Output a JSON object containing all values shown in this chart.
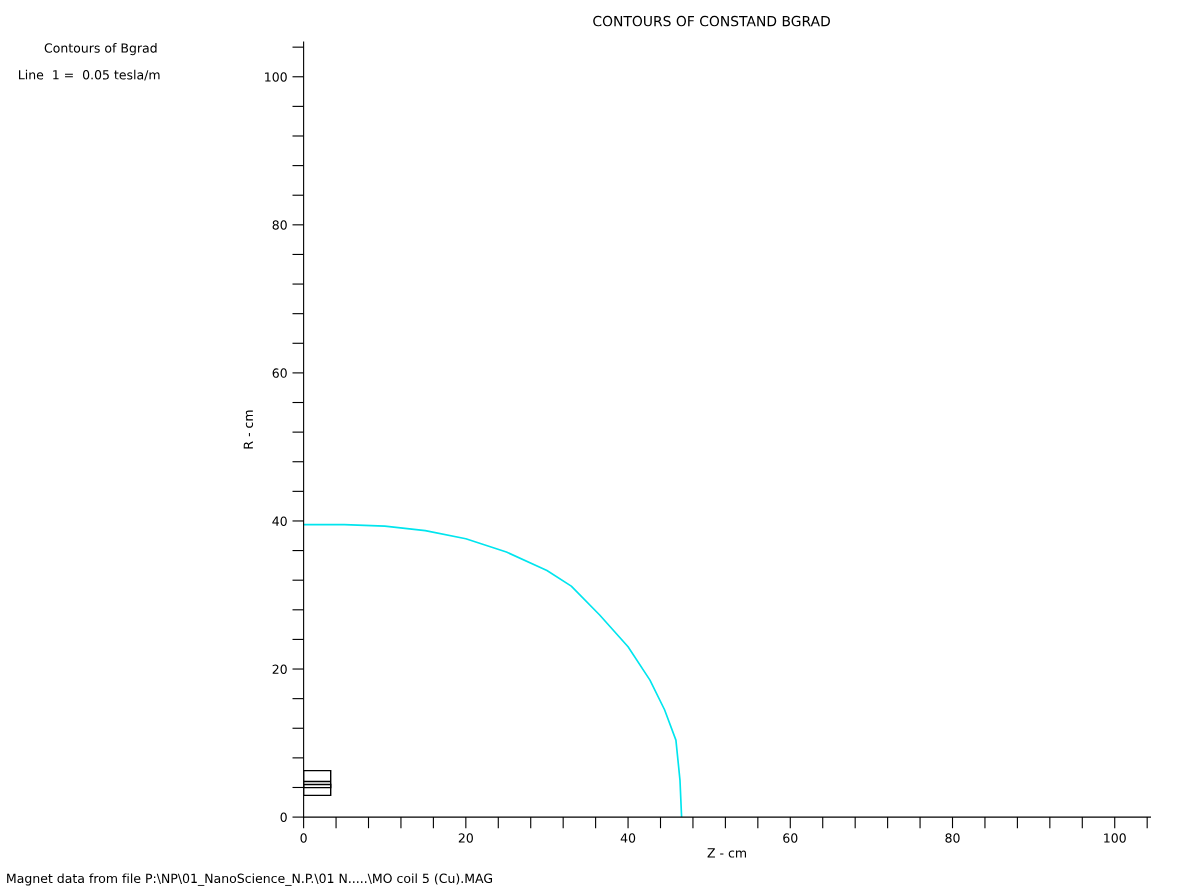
{
  "chart_data": {
    "type": "line",
    "title": "CONTOURS OF CONSTAND BGRAD",
    "xlabel": "Z - cm",
    "ylabel": "R - cm",
    "annotations": [
      "Contours of Bgrad",
      "Line  1 =  0.05 tesla/m",
      "Magnet data from file P:\\NP\\01_NanoScience_N.P.\\01 N.....\\MO coil 5 (Cu).MAG"
    ],
    "series": [
      {
        "color": "#00e5ee",
        "x": [
          0,
          5,
          10,
          15,
          20,
          25,
          30,
          33,
          36.5,
          40,
          42.7,
          44.5,
          45.9,
          46.4,
          46.6
        ],
        "values": [
          39.5,
          39.5,
          39.3,
          38.7,
          37.6,
          35.8,
          33.3,
          31.2,
          27.3,
          23,
          18.5,
          14.5,
          10.4,
          5,
          0
        ]
      }
    ],
    "xlim": [
      0,
      104.4
    ],
    "ylim": [
      0,
      104.7
    ],
    "xticks": [
      0,
      {
        "value": 4,
        "label": null
      },
      {
        "value": 8,
        "label": null
      },
      {
        "value": 12,
        "label": null
      },
      {
        "value": 16,
        "label": null
      },
      20,
      {
        "value": 24,
        "label": null
      },
      {
        "value": 28,
        "label": null
      },
      {
        "value": 32,
        "label": null
      },
      {
        "value": 36,
        "label": null
      },
      40,
      {
        "value": 44,
        "label": null
      },
      {
        "value": 48,
        "label": null
      },
      {
        "value": 52,
        "label": null
      },
      {
        "value": 56,
        "label": null
      },
      60,
      {
        "value": 64,
        "label": null
      },
      {
        "value": 68,
        "label": null
      },
      {
        "value": 72,
        "label": null
      },
      {
        "value": 76,
        "label": null
      },
      80,
      {
        "value": 84,
        "label": null
      },
      {
        "value": 88,
        "label": null
      },
      {
        "value": 92,
        "label": null
      },
      {
        "value": 96,
        "label": null
      },
      100,
      {
        "value": 104,
        "label": null
      }
    ],
    "yticks": [
      0,
      {
        "value": 4,
        "label": null
      },
      {
        "value": 8,
        "label": null
      },
      {
        "value": 12,
        "label": null
      },
      {
        "value": 16,
        "label": null
      },
      20,
      {
        "value": 24,
        "label": null
      },
      {
        "value": 28,
        "label": null
      },
      {
        "value": 32,
        "label": null
      },
      {
        "value": 36,
        "label": null
      },
      40,
      {
        "value": 44,
        "label": null
      },
      {
        "value": 48,
        "label": null
      },
      {
        "value": 52,
        "label": null
      },
      {
        "value": 56,
        "label": null
      },
      60,
      {
        "value": 64,
        "label": null
      },
      {
        "value": 68,
        "label": null
      },
      {
        "value": 72,
        "label": null
      },
      {
        "value": 76,
        "label": null
      },
      80,
      {
        "value": 84,
        "label": null
      },
      {
        "value": 88,
        "label": null
      },
      {
        "value": 92,
        "label": null
      },
      {
        "value": 96,
        "label": null
      },
      100,
      {
        "value": 104,
        "label": null
      }
    ],
    "grid": false,
    "legend": false,
    "marker": "none",
    "line_style": "solid"
  }
}
